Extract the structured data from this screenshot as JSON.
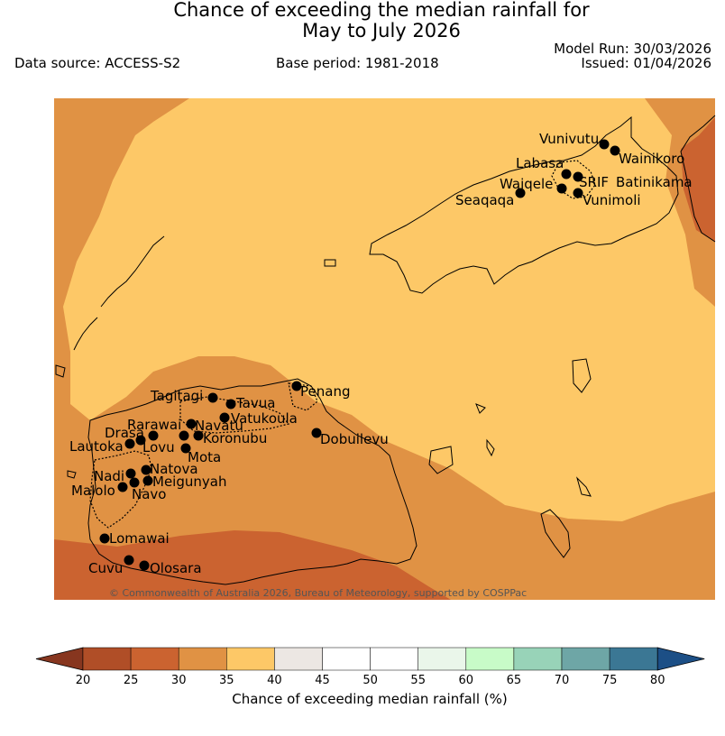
{
  "title_line1": "Chance of exceeding the median rainfall for",
  "title_line2": "May to July 2026",
  "data_source": "Data source: ACCESS-S2",
  "base_period": "Base period: 1981-2018",
  "model_run": "Model Run: 30/03/2026",
  "issued": "Issued: 01/04/2026",
  "copyright": "© Commonwealth of Australia 2026, Bureau of Meteorology, supported by COSPPac",
  "colors": {
    "bin_20_25": "#b04e27",
    "bin_25_30": "#cb6330",
    "bin_30_35": "#e09244",
    "bin_35_40": "#fdc867",
    "bin_40_45": "#ece7e3",
    "bin_45_55": "#ffffff",
    "bin_55_60": "#eaf6ea",
    "bin_60_65": "#c8fbc8",
    "bin_65_70": "#98d3b8",
    "bin_70_75": "#6ea6a6",
    "bin_75_80": "#3b7794",
    "over": "#1c4f86",
    "under": "#87361f"
  },
  "places": [
    {
      "name": "Vunivutu"
    },
    {
      "name": "Wainikoro"
    },
    {
      "name": "Labasa"
    },
    {
      "name": "Waiqele"
    },
    {
      "name": "SRIF"
    },
    {
      "name": "Batinikama"
    },
    {
      "name": "Seaqaqa"
    },
    {
      "name": "Vunimoli"
    },
    {
      "name": "Tagitagi"
    },
    {
      "name": "Penang"
    },
    {
      "name": "Tavua"
    },
    {
      "name": "Vatukoula"
    },
    {
      "name": "Rarawai"
    },
    {
      "name": "Navatu"
    },
    {
      "name": "Drasa"
    },
    {
      "name": "Koronubu"
    },
    {
      "name": "Lautoka"
    },
    {
      "name": "Lovu"
    },
    {
      "name": "Mota"
    },
    {
      "name": "Dobuilevu"
    },
    {
      "name": "Natova"
    },
    {
      "name": "Nadi"
    },
    {
      "name": "Meigunyah"
    },
    {
      "name": "Malolo"
    },
    {
      "name": "Navo"
    },
    {
      "name": "Lomawai"
    },
    {
      "name": "Cuvu"
    },
    {
      "name": "Olosara"
    }
  ],
  "colorbar": {
    "ticks": [
      "20",
      "25",
      "30",
      "35",
      "40",
      "45",
      "50",
      "55",
      "60",
      "65",
      "70",
      "75",
      "80"
    ],
    "title": "Chance of exceeding median rainfall (%)"
  }
}
